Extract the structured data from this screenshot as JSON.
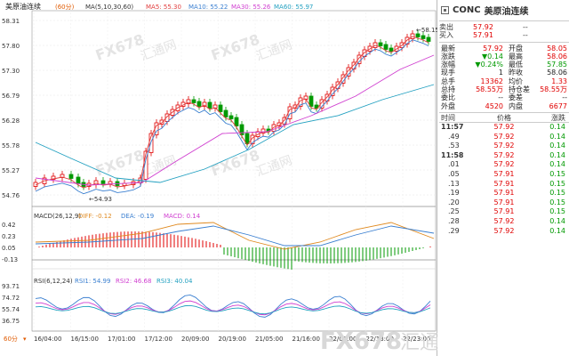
{
  "chart": {
    "title": "美原油连续",
    "period_badge": "60分",
    "ma_label": "MA(5,10,30,60)",
    "ma_values": [
      {
        "text": "MA5: 55.30",
        "color": "#e03c3c"
      },
      {
        "text": "MA10: 55.22",
        "color": "#3a7fd0"
      },
      {
        "text": "MA30: 55.26",
        "color": "#d040d0"
      },
      {
        "text": "MA60: 55.97",
        "color": "#22a0c0"
      }
    ],
    "price_ticks": [
      "58.31",
      "57.80",
      "57.30",
      "56.79",
      "56.28",
      "55.78",
      "55.27",
      "54.76"
    ],
    "high_marker": "←58.15",
    "low_marker": "←54.93",
    "macd_label": "MACD(26,12,9)",
    "macd_values": [
      {
        "text": "DIFF: -0.12",
        "color": "#e08a20"
      },
      {
        "text": "DEA: -0.19",
        "color": "#3a7fd0"
      },
      {
        "text": "MACD: 0.14",
        "color": "#d040d0"
      }
    ],
    "macd_ticks": [
      "0.42",
      "0.23",
      "0.05",
      "-0.13"
    ],
    "rsi_label": "RSI(6,12,24)",
    "rsi_values": [
      {
        "text": "RSI1: 54.99",
        "color": "#3a7fd0"
      },
      {
        "text": "RSI2: 46.68",
        "color": "#d040d0"
      },
      {
        "text": "RSI3: 40.04",
        "color": "#22a0c0"
      }
    ],
    "rsi_ticks": [
      "93.71",
      "74.72",
      "55.74",
      "36.75"
    ],
    "time_labels": [
      "16/04:00",
      "16/15:00",
      "17/01:00",
      "17/12:00",
      "20/09:00",
      "20/19:00",
      "21/05:00",
      "21/16:00",
      "22/02:00",
      "22/13:00",
      "22/23:00"
    ],
    "period_selector": "60分",
    "watermark": "FX678",
    "watermark2": "汇通网",
    "colors": {
      "up": "#e00000",
      "down": "#009900",
      "accent": "#e05a00"
    }
  },
  "quote": {
    "code": "CONC",
    "name": "美原油连续",
    "sell_label": "卖出",
    "sell_price": "57.92",
    "sell_vol": "--",
    "buy_label": "买入",
    "buy_price": "57.91",
    "buy_vol": "--",
    "stats": [
      {
        "l1": "最新",
        "v1": "57.92",
        "c1": "red",
        "l2": "开盘",
        "v2": "58.05",
        "c2": "red"
      },
      {
        "l1": "涨跌",
        "v1": "▼0.14",
        "c1": "grn",
        "l2": "最高",
        "v2": "58.06",
        "c2": "red"
      },
      {
        "l1": "涨幅",
        "v1": "▼0.24%",
        "c1": "grn",
        "l2": "最低",
        "v2": "57.85",
        "c2": "grn"
      },
      {
        "l1": "现手",
        "v1": "1",
        "c1": "blk",
        "l2": "昨收",
        "v2": "58.06",
        "c2": "blk"
      },
      {
        "l1": "总手",
        "v1": "13362",
        "c1": "red",
        "l2": "均价",
        "v2": "1.33",
        "c2": "red"
      },
      {
        "l1": "总持",
        "v1": "58.55万",
        "c1": "red",
        "l2": "持仓差",
        "v2": "58.55万",
        "c2": "red"
      },
      {
        "l1": "委比",
        "v1": "--",
        "c1": "blk",
        "l2": "委差",
        "v2": "--",
        "c2": "blk"
      },
      {
        "l1": "外盘",
        "v1": "4520",
        "c1": "red",
        "l2": "内盘",
        "v2": "6677",
        "c2": "red"
      }
    ],
    "trades_header": {
      "time": "时间",
      "price": "价格",
      "change": "涨跌"
    },
    "trades": [
      {
        "time": "11:57",
        "price": "57.92",
        "change": "0.14"
      },
      {
        "time": ".49",
        "price": "57.92",
        "change": "0.14"
      },
      {
        "time": ".53",
        "price": "57.92",
        "change": "0.14"
      },
      {
        "time": "11:58",
        "price": "57.92",
        "change": "0.14"
      },
      {
        "time": ".01",
        "price": "57.92",
        "change": "0.14"
      },
      {
        "time": ".05",
        "price": "57.91",
        "change": "0.15"
      },
      {
        "time": ".13",
        "price": "57.91",
        "change": "0.15"
      },
      {
        "time": ".19",
        "price": "57.91",
        "change": "0.15"
      },
      {
        "time": ".20",
        "price": "57.91",
        "change": "0.15"
      },
      {
        "time": ".25",
        "price": "57.91",
        "change": "0.15"
      },
      {
        "time": ".28",
        "price": "57.92",
        "change": "0.14"
      },
      {
        "time": ".29",
        "price": "57.92",
        "change": "0.14"
      }
    ]
  }
}
